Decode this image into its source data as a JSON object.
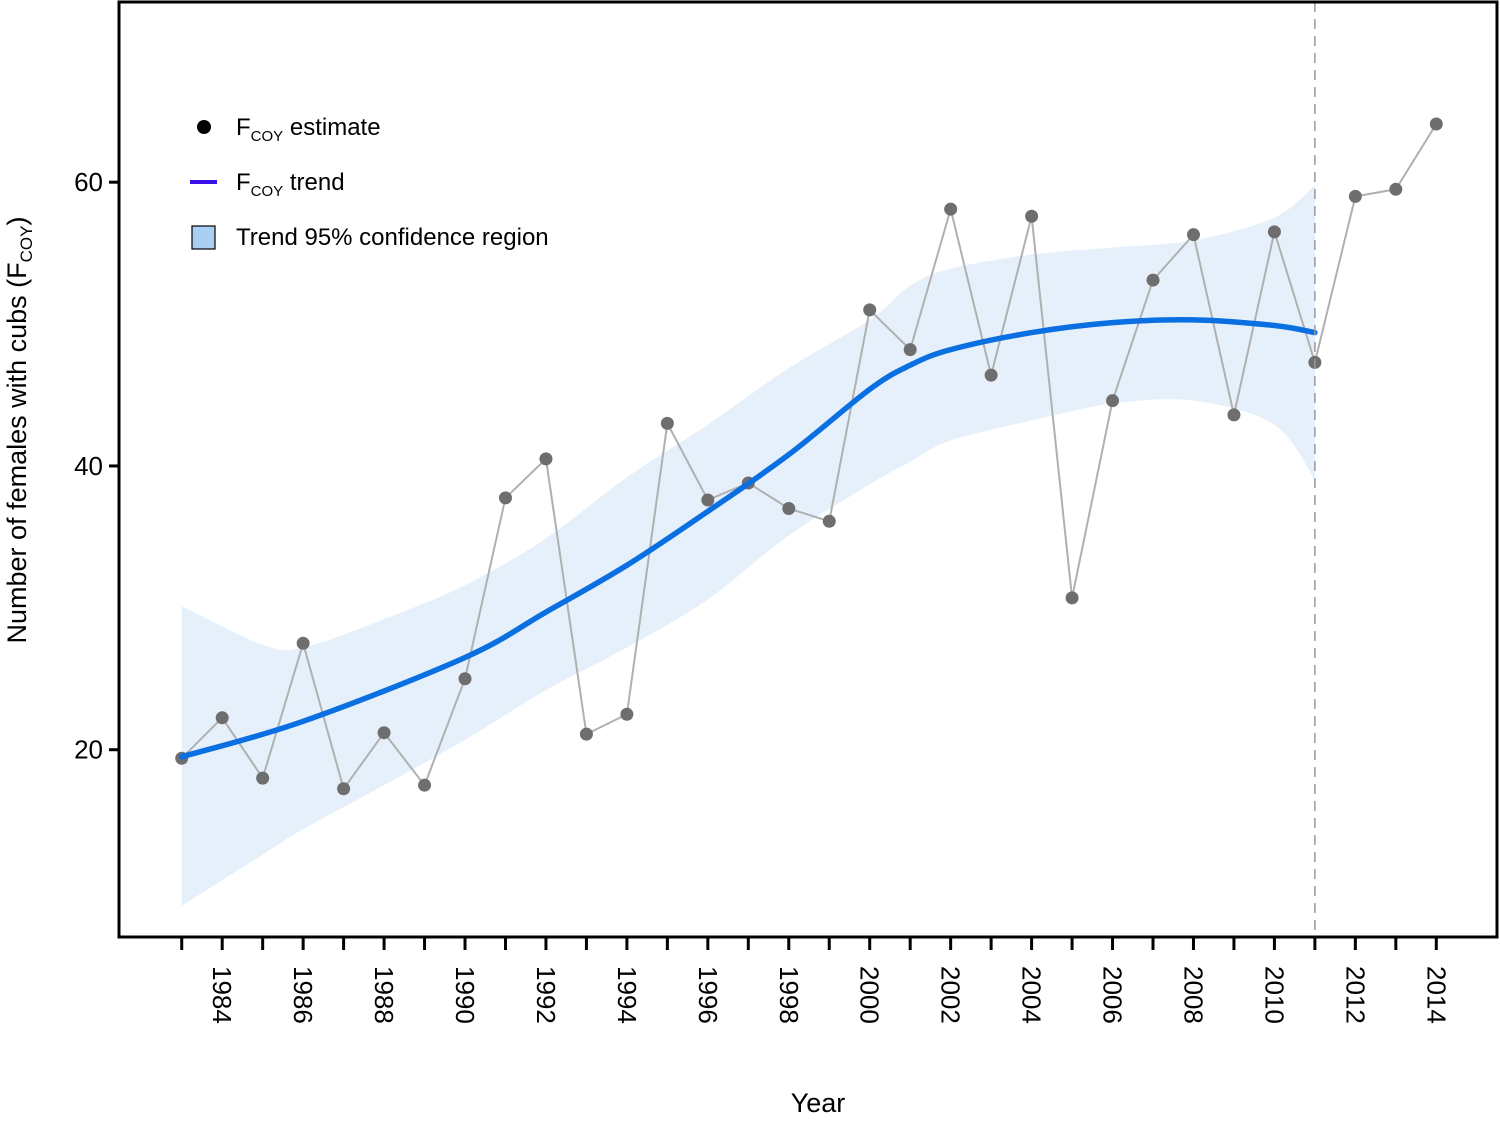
{
  "chart_data": {
    "type": "line",
    "title": "",
    "xlabel": "Year",
    "ylabel": {
      "main": "Number of females with cubs (F",
      "sub": "COY",
      "rest": ")"
    },
    "xlim": [
      1981.45,
      2015.5
    ],
    "ylim": [
      6.8,
      72.7
    ],
    "yticks": [
      20,
      40,
      60
    ],
    "xticks_minor": [
      1983,
      1984,
      1985,
      1986,
      1987,
      1988,
      1989,
      1990,
      1991,
      1992,
      1993,
      1994,
      1995,
      1996,
      1997,
      1998,
      1999,
      2000,
      2001,
      2002,
      2003,
      2004,
      2005,
      2006,
      2007,
      2008,
      2009,
      2010,
      2011,
      2012,
      2013,
      2014
    ],
    "xtick_labels": [
      "1984",
      "1986",
      "1988",
      "1990",
      "1992",
      "1994",
      "1996",
      "1998",
      "2000",
      "2002",
      "2004",
      "2006",
      "2008",
      "2010",
      "2012",
      "2014"
    ],
    "grid": false,
    "legend_placement": "top-left",
    "vertical_reference_line": {
      "x": 2011,
      "style": "dashed",
      "color": "#999999"
    },
    "colors": {
      "estimate": "#6e6e6e",
      "estimate_line": "#b0b0b0",
      "trend": "#0a6fe0",
      "legend_trend": "#3a10e8",
      "ci_fill": "#e6f0fb",
      "legend_ci_fill": "#a9cff3"
    },
    "legend": [
      {
        "main": "F",
        "sub": "COY",
        "rest": " estimate",
        "symbol": "dot"
      },
      {
        "main": "F",
        "sub": "COY",
        "rest": " trend",
        "symbol": "line"
      },
      {
        "main": "Trend 95% confidence region",
        "sub": "",
        "rest": "",
        "symbol": "box"
      }
    ],
    "series": [
      {
        "kind": "estimate",
        "x": [
          1983,
          1984,
          1985,
          1986,
          1987,
          1988,
          1989,
          1990,
          1991,
          1992,
          1993,
          1994,
          1995,
          1996,
          1997,
          1998,
          1999,
          2000,
          2001,
          2002,
          2003,
          2004,
          2005,
          2006,
          2007,
          2008,
          2009,
          2010,
          2011,
          2012,
          2013,
          2014
        ],
        "y": [
          19.4,
          22.25,
          18.0,
          27.5,
          17.25,
          21.2,
          17.5,
          25.0,
          37.75,
          40.5,
          21.1,
          22.5,
          43.0,
          37.6,
          38.8,
          37.0,
          36.1,
          51.0,
          48.2,
          58.1,
          46.4,
          57.6,
          30.7,
          44.6,
          53.1,
          56.3,
          43.6,
          56.5,
          47.3,
          59.0,
          59.5,
          64.1
        ]
      },
      {
        "kind": "trend",
        "x": [
          1983,
          1986,
          1990,
          1992,
          1994,
          1996,
          1998,
          2000,
          2001,
          2002,
          2004,
          2006,
          2008,
          2010,
          2011
        ],
        "y": [
          19.5,
          22.0,
          26.5,
          29.7,
          33.0,
          36.8,
          40.8,
          45.4,
          47.1,
          48.2,
          49.4,
          50.1,
          50.3,
          49.9,
          49.4
        ]
      },
      {
        "kind": "ci",
        "x": [
          1983,
          1985,
          1986,
          1988,
          1990,
          1992,
          1994,
          1996,
          1998,
          2000,
          2001,
          2002,
          2004,
          2006,
          2008,
          2010,
          2011
        ],
        "upper": [
          30.1,
          27.4,
          27.2,
          29.2,
          31.6,
          34.9,
          39.2,
          42.9,
          46.9,
          50.3,
          52.7,
          53.9,
          54.9,
          55.4,
          55.9,
          57.5,
          59.8
        ],
        "lower": [
          9.0,
          12.6,
          14.4,
          17.5,
          20.7,
          24.2,
          27.2,
          30.6,
          35.1,
          38.7,
          40.3,
          41.8,
          43.2,
          44.4,
          44.6,
          42.9,
          39.0
        ]
      }
    ]
  }
}
